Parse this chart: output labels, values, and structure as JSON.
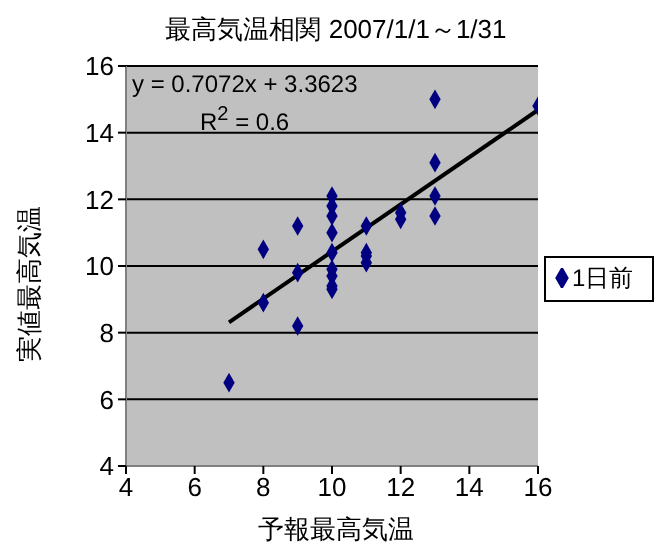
{
  "chart_data": {
    "type": "scatter",
    "title": "最高気温相関  2007/1/1～1/31",
    "xlabel": "予報最高気温",
    "ylabel": "実値最高気温",
    "annotations": [
      "y = 0.7072x + 3.3623",
      "R$^{2}$ = 0.6"
    ],
    "series": [
      {
        "name": "1日前",
        "color": "#000080",
        "marker": "diamond",
        "x": [
          13,
          16,
          13,
          13,
          13,
          10,
          10,
          10,
          9,
          11,
          10,
          12,
          12,
          8,
          11,
          11,
          11,
          10,
          9,
          10,
          10,
          10,
          10,
          8,
          9,
          7
        ],
        "values": [
          15.0,
          14.8,
          13.1,
          12.1,
          11.5,
          12.1,
          11.8,
          11.5,
          11.2,
          11.2,
          11.0,
          11.6,
          11.4,
          10.5,
          10.4,
          10.3,
          10.1,
          10.4,
          9.8,
          9.9,
          9.7,
          9.4,
          9.3,
          8.9,
          8.2,
          6.5
        ]
      },
      {
        "type": "line",
        "color": "#000000",
        "marker": "none",
        "line_style": "solid",
        "x": [
          7,
          16
        ],
        "values": [
          8.31,
          14.68
        ]
      }
    ],
    "xlim": [
      4,
      16
    ],
    "xticks": [
      4,
      6,
      8,
      10,
      12,
      14,
      16
    ],
    "ylim": [
      4,
      16
    ],
    "yticks": [
      4,
      6,
      8,
      10,
      12,
      14,
      16
    ],
    "grid": "y",
    "legend": "right"
  }
}
